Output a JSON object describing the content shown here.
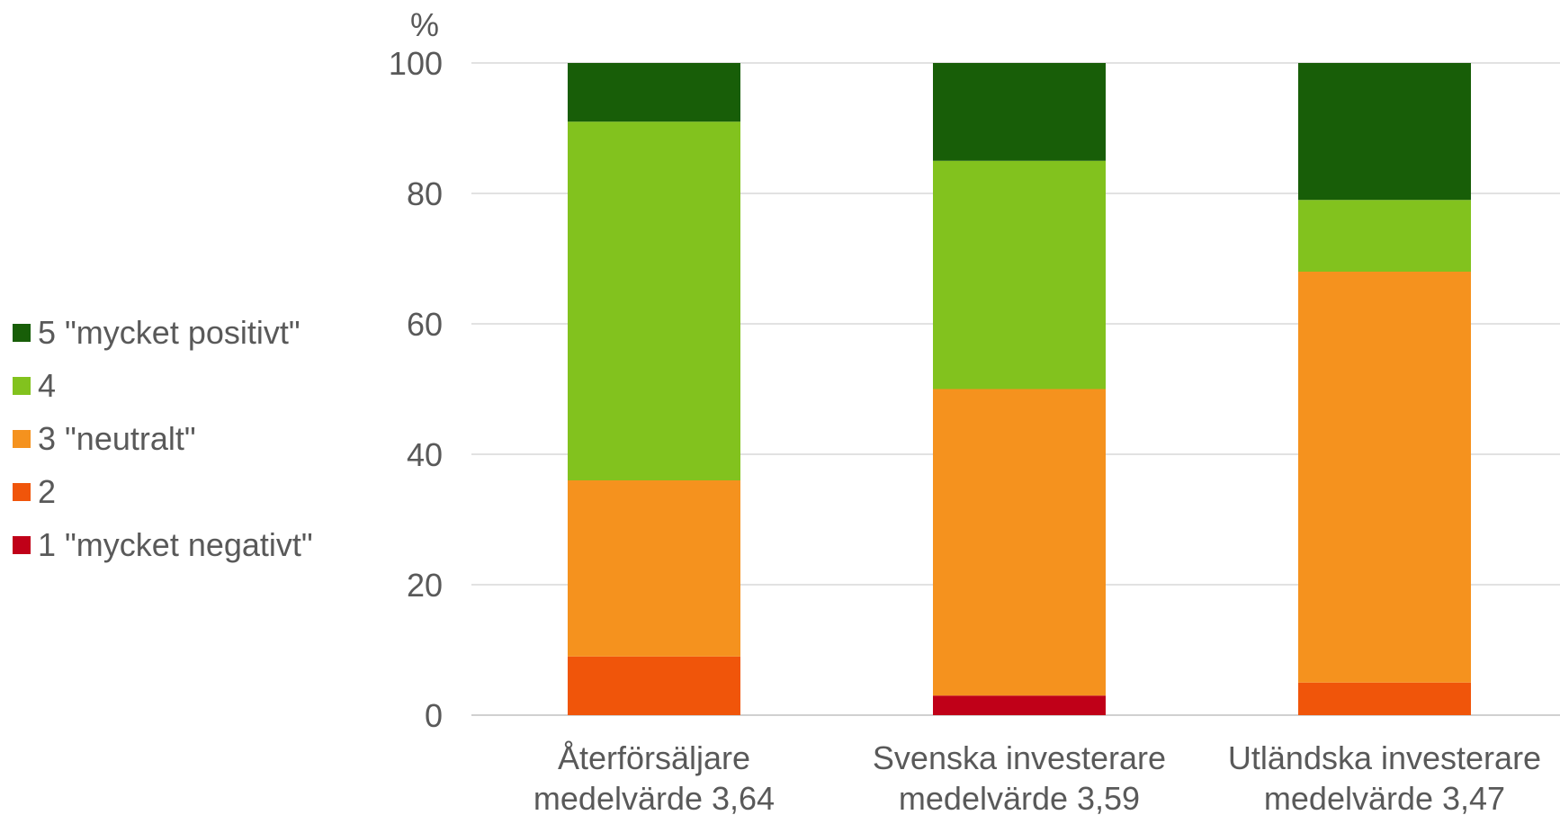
{
  "chart_data": {
    "type": "bar",
    "stacked": true,
    "ylabel": "%",
    "ylim": [
      0,
      100
    ],
    "yticks": [
      0,
      20,
      40,
      60,
      80,
      100
    ],
    "grid": true,
    "legend_position": "left",
    "categories": [
      [
        "Återförsäljare",
        "medelvärde 3,64"
      ],
      [
        "Svenska investerare",
        "medelvärde 3,59"
      ],
      [
        "Utländska investerare",
        "medelvärde 3,47"
      ]
    ],
    "series": [
      {
        "name": "1 \"mycket negativt\"",
        "color": "#C00018",
        "values": [
          0,
          3,
          0
        ]
      },
      {
        "name": "2",
        "color": "#F0550A",
        "values": [
          9,
          0,
          5
        ]
      },
      {
        "name": "3 \"neutralt\"",
        "color": "#F5921E",
        "values": [
          27,
          47,
          63
        ]
      },
      {
        "name": "4",
        "color": "#82C21E",
        "values": [
          55,
          35,
          11
        ]
      },
      {
        "name": "5 \"mycket positivt\"",
        "color": "#185E08",
        "values": [
          9,
          15,
          21
        ]
      }
    ]
  }
}
